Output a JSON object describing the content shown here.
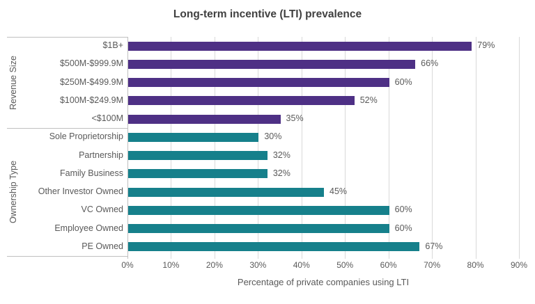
{
  "chart_data": {
    "type": "bar",
    "orientation": "horizontal",
    "title": "Long-term incentive (LTI) prevalence",
    "xlabel": "Percentage of private companies using LTI",
    "xlim": [
      0,
      90
    ],
    "xticks": [
      0,
      10,
      20,
      30,
      40,
      50,
      60,
      70,
      80,
      90
    ],
    "x_tick_labels": [
      "0%",
      "10%",
      "20%",
      "30%",
      "40%",
      "50%",
      "60%",
      "70%",
      "80%",
      "90%"
    ],
    "grid": true,
    "data_labels": "outside-end",
    "legend": "none",
    "groups": [
      {
        "name": "Revenue Size",
        "color": "#4E3085",
        "categories": [
          "$1B+",
          "$500M-$999.9M",
          "$250M-$499.9M",
          "$100M-$249.9M",
          "<$100M"
        ],
        "values": [
          79,
          66,
          60,
          52,
          35
        ],
        "value_labels": [
          "79%",
          "66%",
          "60%",
          "52%",
          "35%"
        ]
      },
      {
        "name": "Ownership Type",
        "color": "#16808B",
        "categories": [
          "Sole Proprietorship",
          "Partnership",
          "Family Business",
          "Other Investor Owned",
          "VC Owned",
          "Employee Owned",
          "PE Owned"
        ],
        "values": [
          30,
          32,
          32,
          45,
          60,
          60,
          67
        ],
        "value_labels": [
          "30%",
          "32%",
          "32%",
          "45%",
          "60%",
          "60%",
          "67%"
        ]
      }
    ]
  },
  "colors": {
    "revenue_bar": "#4E3085",
    "ownership_bar": "#16808B",
    "gridline": "#d9d9d9",
    "axis_line": "#bfbfbf",
    "label_text": "#595959",
    "title_text": "#404040",
    "background": "#ffffff"
  }
}
